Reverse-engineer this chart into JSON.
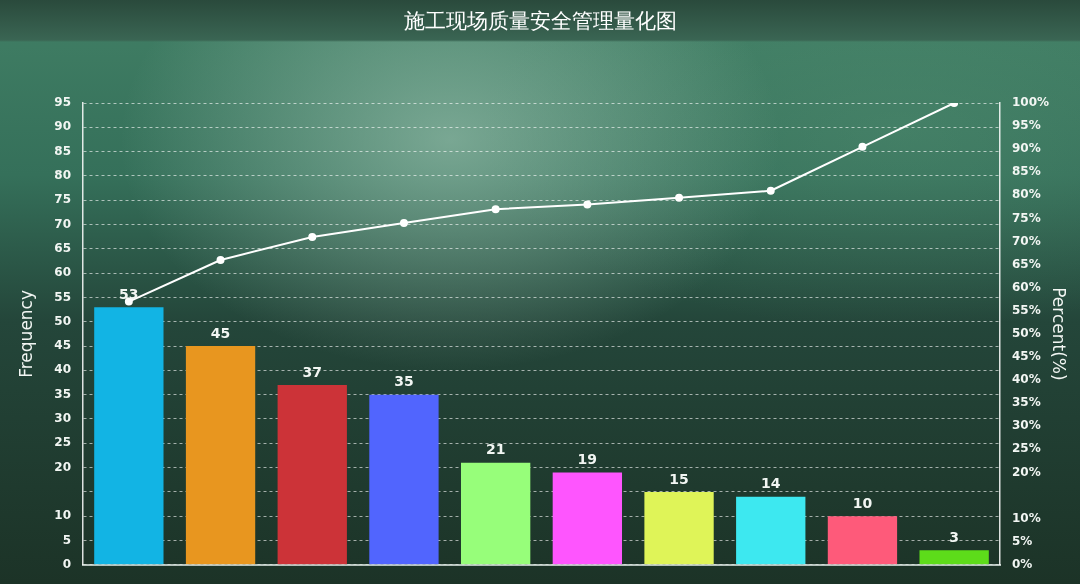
{
  "chart_data": {
    "type": "bar",
    "title": "施工现场质量安全管理量化图",
    "ylabel": "Frequency",
    "y2label": "Percent(%)",
    "categories": [
      null,
      null,
      null,
      null,
      null,
      null,
      null,
      null,
      null,
      null
    ],
    "series": [
      {
        "values": [
          53,
          45,
          37,
          35,
          21,
          19,
          15,
          14,
          10,
          3
        ],
        "value_labels": [
          "53",
          "45",
          "37",
          "35",
          "21",
          "19",
          "15",
          "14",
          "10",
          "3"
        ],
        "colors": [
          "#12b4e4",
          "#e8961f",
          "#cc3338",
          "#5165fe",
          "#97fe7a",
          "#fe55fe",
          "#dff458",
          "#3de8f0",
          "#fe5a7a",
          "#5ddc1a"
        ]
      },
      {
        "type": "line",
        "axis": "y2",
        "color": "#ffffff",
        "marker": "circle",
        "line_style": "solid",
        "values": [
          57,
          66,
          71,
          74,
          77,
          78,
          79.5,
          81,
          90.5,
          100
        ]
      }
    ],
    "ylim": [
      0,
      95
    ],
    "yticks": [
      0,
      5,
      10,
      {
        "value": 15,
        "label": null
      },
      20,
      25,
      30,
      35,
      40,
      45,
      50,
      55,
      60,
      65,
      70,
      75,
      80,
      85,
      90,
      95
    ],
    "y2lim": [
      0,
      100
    ],
    "y2ticks": [
      {
        "value": 0,
        "label": "0%"
      },
      {
        "value": 5,
        "label": "5%"
      },
      {
        "value": 10,
        "label": "10%"
      },
      {
        "value": 20,
        "label": "20%"
      },
      {
        "value": 25,
        "label": "25%"
      },
      {
        "value": 30,
        "label": "30%"
      },
      {
        "value": 35,
        "label": "35%"
      },
      {
        "value": 40,
        "label": "40%"
      },
      {
        "value": 45,
        "label": "45%"
      },
      {
        "value": 50,
        "label": "50%"
      },
      {
        "value": 55,
        "label": "55%"
      },
      {
        "value": 60,
        "label": "60%"
      },
      {
        "value": 65,
        "label": "65%"
      },
      {
        "value": 70,
        "label": "70%"
      },
      {
        "value": 75,
        "label": "75%"
      },
      {
        "value": 80,
        "label": "80%"
      },
      {
        "value": 85,
        "label": "85%"
      },
      {
        "value": 90,
        "label": "90%"
      },
      {
        "value": 95,
        "label": "95%"
      },
      {
        "value": 100,
        "label": "100%"
      }
    ],
    "grid": "y"
  }
}
